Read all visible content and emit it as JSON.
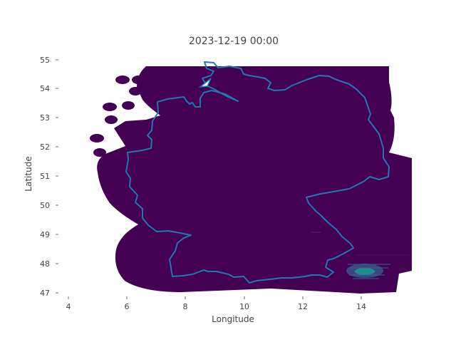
{
  "title": "2023-12-19 00:00",
  "axes": {
    "xlabel": "Longitude",
    "ylabel": "Latitude",
    "xticks": [
      "4",
      "6",
      "8",
      "10",
      "12",
      "14"
    ],
    "yticks": [
      "47",
      "48",
      "49",
      "50",
      "51",
      "52",
      "53",
      "54",
      "55"
    ],
    "xlim": [
      3.5,
      15.8
    ],
    "ylim": [
      46.95,
      55.3
    ]
  },
  "map": {
    "field_color": "#440154",
    "border_color": "#1f77b4",
    "hotspot_colors": [
      "#21918c",
      "#3b528b"
    ],
    "hotspot_region": "lon 13.6–14.8, lat 47.5–48.0"
  }
}
